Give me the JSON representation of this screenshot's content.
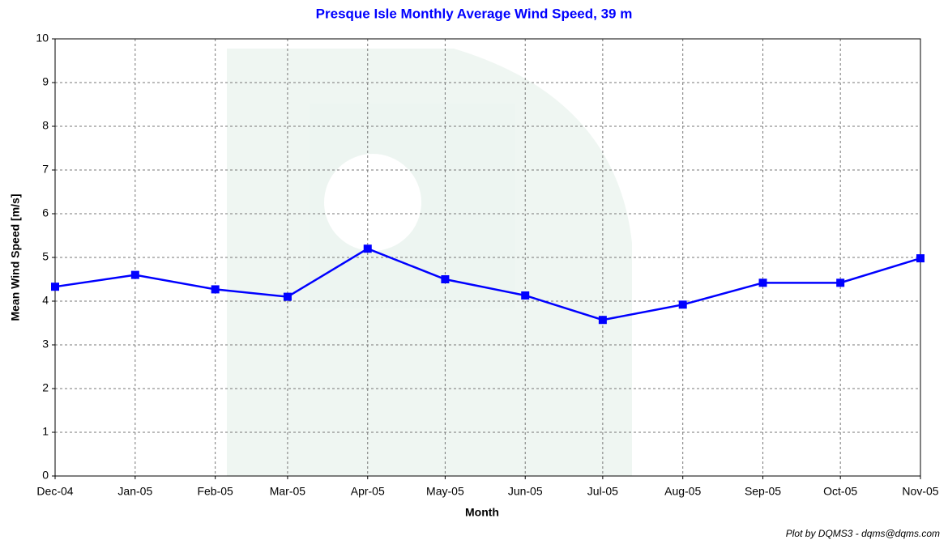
{
  "chart_data": {
    "type": "line",
    "title": "Presque Isle Monthly Average Wind Speed, 39 m",
    "x_label": "Month",
    "y_label": "Mean Wind Speed [m/s]",
    "footer": "Plot by DQMS3 - dqms@dqms.com",
    "x": [
      "Dec-04",
      "Jan-05",
      "Feb-05",
      "Mar-05",
      "Apr-05",
      "May-05",
      "Jun-05",
      "Jul-05",
      "Aug-05",
      "Sep-05",
      "Oct-05",
      "Nov-05"
    ],
    "series": [
      {
        "color": "#0000ff",
        "values": [
          4.33,
          4.6,
          4.27,
          4.1,
          5.2,
          4.5,
          4.13,
          3.57,
          3.92,
          4.42,
          4.42,
          4.98
        ]
      }
    ],
    "ylim": [
      0,
      10
    ],
    "yticks": [
      0,
      1,
      2,
      3,
      4,
      5,
      6,
      7,
      8,
      9,
      10
    ],
    "grid": true
  }
}
